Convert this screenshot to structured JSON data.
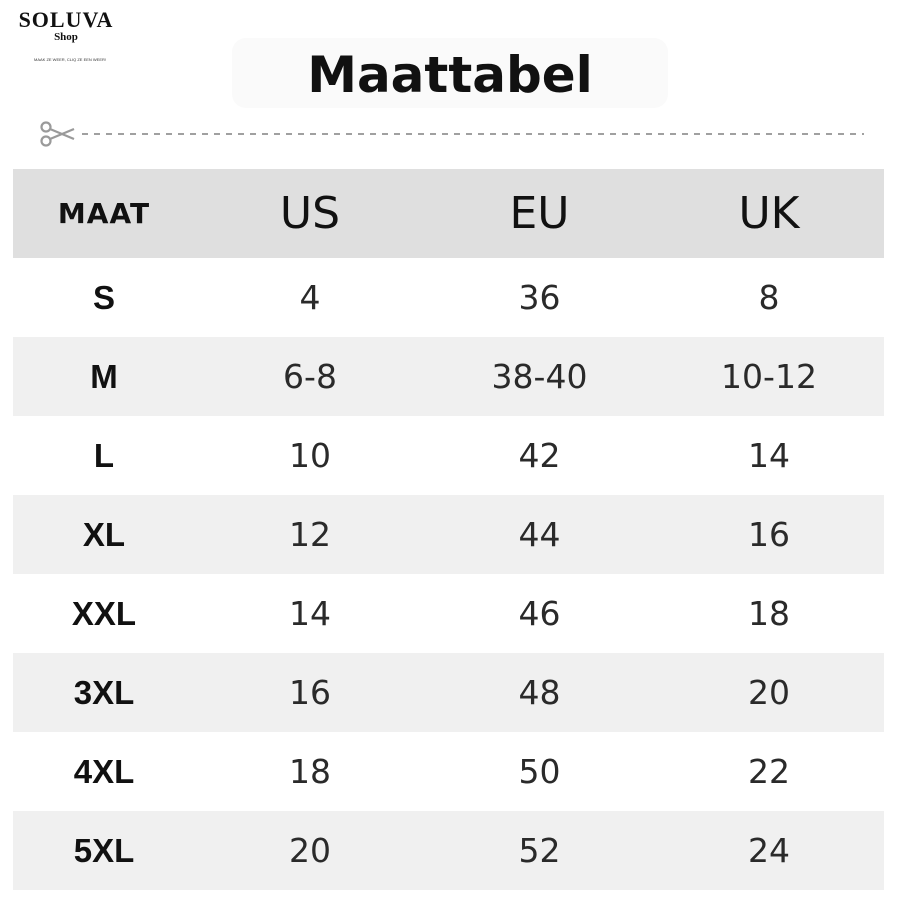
{
  "logo": {
    "name": "SOLUVA",
    "sub": "Shop",
    "tagline": "MAAK ZE WEER, CLIQ ZE EEN WEER!"
  },
  "title": "Maattabel",
  "colors": {
    "header_bg": "#dfdfdf",
    "stripe_bg": "#f0f0f0",
    "text": "#111111",
    "cut_line": "#a0a0a0"
  },
  "icons": {
    "cut": "scissors-icon"
  },
  "table": {
    "headers": [
      "MAAT",
      "US",
      "EU",
      "UK"
    ],
    "rows": [
      [
        "S",
        "4",
        "36",
        "8"
      ],
      [
        "M",
        "6-8",
        "38-40",
        "10-12"
      ],
      [
        "L",
        "10",
        "42",
        "14"
      ],
      [
        "XL",
        "12",
        "44",
        "16"
      ],
      [
        "XXL",
        "14",
        "46",
        "18"
      ],
      [
        "3XL",
        "16",
        "48",
        "20"
      ],
      [
        "4XL",
        "18",
        "50",
        "22"
      ],
      [
        "5XL",
        "20",
        "52",
        "24"
      ]
    ]
  }
}
